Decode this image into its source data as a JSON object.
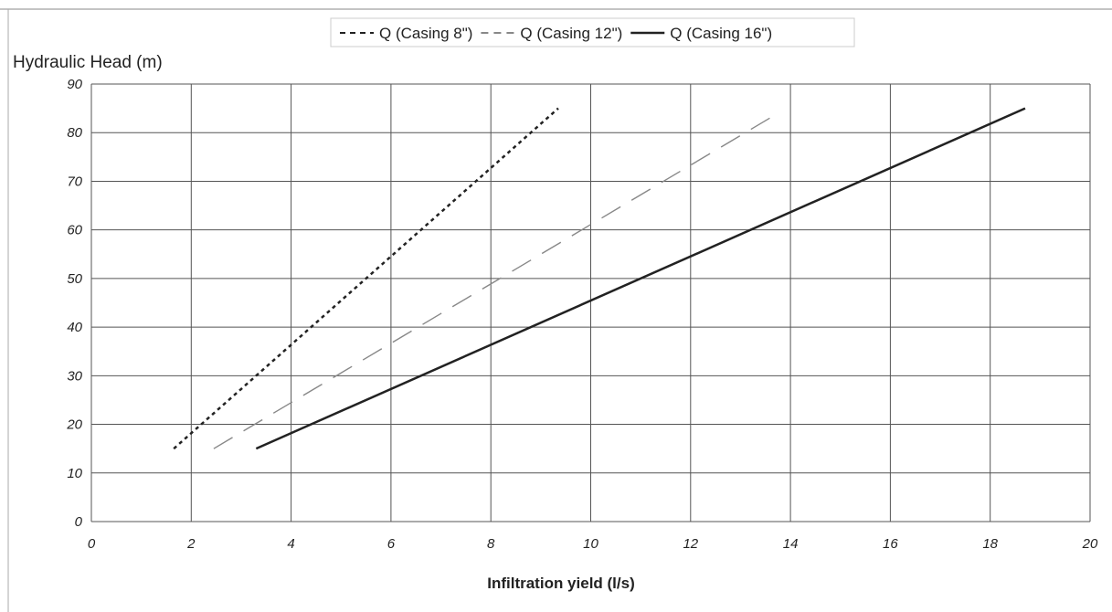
{
  "chart_data": {
    "type": "line",
    "xlabel": "Infiltration yield (l/s)",
    "ylabel": "Hydraulic Head (m)",
    "xlim": [
      0,
      20
    ],
    "ylim": [
      0,
      90
    ],
    "x_ticks": [
      0,
      2,
      4,
      6,
      8,
      10,
      12,
      14,
      16,
      18,
      20
    ],
    "y_ticks": [
      0,
      10,
      20,
      30,
      40,
      50,
      60,
      70,
      80,
      90
    ],
    "grid": true,
    "legend_position": "top-center",
    "series": [
      {
        "name": "Q (Casing 8\")",
        "line_style": "dotted",
        "color": "#222222",
        "x": [
          1.65,
          9.35
        ],
        "y": [
          15,
          85
        ]
      },
      {
        "name": "Q (Casing 12\")",
        "line_style": "dashed",
        "color": "#888888",
        "x": [
          2.45,
          13.75
        ],
        "y": [
          15,
          84
        ]
      },
      {
        "name": "Q (Casing 16\")",
        "line_style": "solid",
        "color": "#222222",
        "x": [
          3.3,
          18.7
        ],
        "y": [
          15,
          85
        ]
      }
    ]
  }
}
